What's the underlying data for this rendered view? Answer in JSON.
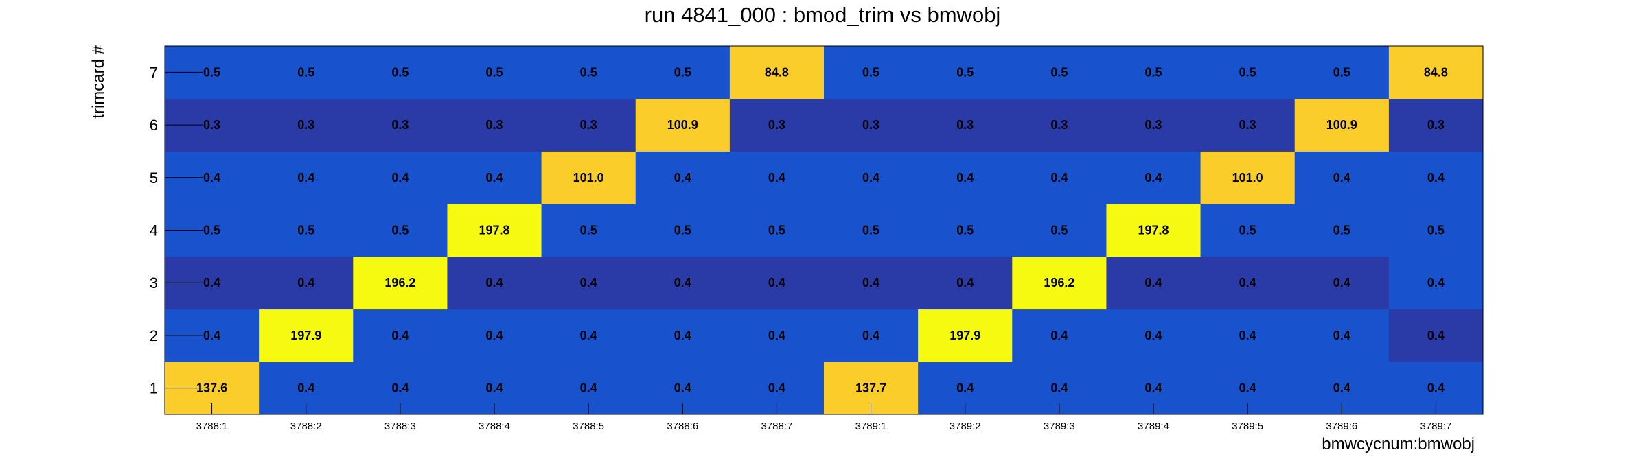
{
  "chart_data": {
    "type": "heatmap",
    "title": "run 4841_000 : bmod_trim vs bmwobj",
    "xlabel": "bmwcycnum:bmwobj",
    "ylabel": "trimcard #",
    "x_categories": [
      "3788:1",
      "3788:2",
      "3788:3",
      "3788:4",
      "3788:5",
      "3788:6",
      "3788:7",
      "3789:1",
      "3789:2",
      "3789:3",
      "3789:4",
      "3789:5",
      "3789:6",
      "3789:7"
    ],
    "y_categories": [
      "1",
      "2",
      "3",
      "4",
      "5",
      "6",
      "7"
    ],
    "values": [
      [
        "137.6",
        "0.4",
        "0.4",
        "0.4",
        "0.4",
        "0.4",
        "0.4",
        "137.7",
        "0.4",
        "0.4",
        "0.4",
        "0.4",
        "0.4",
        "0.4"
      ],
      [
        "0.4",
        "197.9",
        "0.4",
        "0.4",
        "0.4",
        "0.4",
        "0.4",
        "0.4",
        "197.9",
        "0.4",
        "0.4",
        "0.4",
        "0.4",
        "0.4"
      ],
      [
        "0.4",
        "0.4",
        "196.2",
        "0.4",
        "0.4",
        "0.4",
        "0.4",
        "0.4",
        "0.4",
        "196.2",
        "0.4",
        "0.4",
        "0.4",
        "0.4"
      ],
      [
        "0.5",
        "0.5",
        "0.5",
        "197.8",
        "0.5",
        "0.5",
        "0.5",
        "0.5",
        "0.5",
        "0.5",
        "197.8",
        "0.5",
        "0.5",
        "0.5"
      ],
      [
        "0.4",
        "0.4",
        "0.4",
        "0.4",
        "101.0",
        "0.4",
        "0.4",
        "0.4",
        "0.4",
        "0.4",
        "0.4",
        "101.0",
        "0.4",
        "0.4"
      ],
      [
        "0.3",
        "0.3",
        "0.3",
        "0.3",
        "0.3",
        "100.9",
        "0.3",
        "0.3",
        "0.3",
        "0.3",
        "0.3",
        "0.3",
        "100.9",
        "0.3"
      ],
      [
        "0.5",
        "0.5",
        "0.5",
        "0.5",
        "0.5",
        "0.5",
        "84.8",
        "0.5",
        "0.5",
        "0.5",
        "0.5",
        "0.5",
        "0.5",
        "84.8"
      ]
    ],
    "colorscale": {
      "low_dark": "#2a3aa6",
      "low": "#1852cc",
      "mid_high": "#fbcd2a",
      "high": "#f6f910"
    }
  }
}
